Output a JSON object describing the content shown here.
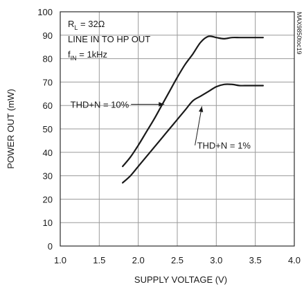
{
  "chart_data": {
    "type": "line",
    "xlabel": "SUPPLY VOLTAGE (V)",
    "ylabel": "POWER OUT (mW)",
    "xlim": [
      1.0,
      4.0
    ],
    "ylim": [
      0,
      100
    ],
    "xticks": [
      "1.0",
      "1.5",
      "2.0",
      "2.5",
      "3.0",
      "3.5",
      "4.0"
    ],
    "yticks": [
      "0",
      "10",
      "20",
      "30",
      "40",
      "50",
      "60",
      "70",
      "80",
      "90",
      "100"
    ],
    "grid": true,
    "conditions": {
      "line1_main": "R",
      "line1_sub": "L",
      "line1_rest": " = 32Ω",
      "line2": "LINE IN TO HP OUT",
      "line3_main": "f",
      "line3_sub": "IN",
      "line3_rest": " = 1kHz"
    },
    "watermark": "MAX9850toc19",
    "series": [
      {
        "name": "THD+N = 10%",
        "x": [
          1.8,
          1.9,
          2.0,
          2.1,
          2.2,
          2.3,
          2.4,
          2.5,
          2.6,
          2.7,
          2.8,
          2.9,
          3.0,
          3.1,
          3.2,
          3.3,
          3.4,
          3.5,
          3.6
        ],
        "y": [
          34,
          38,
          43,
          48.5,
          54,
          60,
          66,
          72,
          77.5,
          82,
          87,
          89.5,
          89,
          88.5,
          89,
          89,
          89,
          89,
          89
        ]
      },
      {
        "name": "THD+N = 1%",
        "x": [
          1.8,
          1.9,
          2.0,
          2.1,
          2.2,
          2.3,
          2.4,
          2.5,
          2.6,
          2.7,
          2.8,
          2.9,
          3.0,
          3.1,
          3.2,
          3.3,
          3.4,
          3.5,
          3.6
        ],
        "y": [
          27,
          30,
          34,
          38,
          42,
          46,
          50,
          54,
          58,
          62,
          64,
          66,
          68,
          69,
          69,
          68.5,
          68.5,
          68.5,
          68.5
        ]
      }
    ],
    "annotations": [
      {
        "text": "THD+N = 10%",
        "series": 0,
        "point_x": 2.36,
        "point_y": 60.5,
        "text_x": 1.13,
        "text_y": 60.5
      },
      {
        "text": "THD+N = 1%",
        "series": 1,
        "point_x": 2.82,
        "point_y": 60.5,
        "text_x": 3.44,
        "text_y": 43
      }
    ]
  }
}
